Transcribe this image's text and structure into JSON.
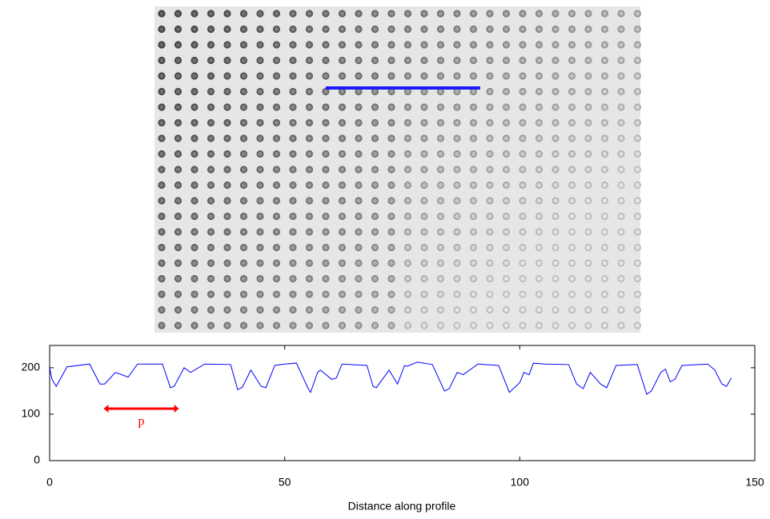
{
  "chart_data": {
    "type": "line",
    "xlabel": "Distance along profile",
    "xlim": [
      0,
      150
    ],
    "ylim": [
      0,
      248
    ],
    "xticks": [
      0,
      50,
      100,
      150
    ],
    "yticks": [
      0,
      100,
      200
    ],
    "x": [
      0,
      0.5,
      1.4,
      3.7,
      8.5,
      10.7,
      11.7,
      14,
      16.7,
      18.7,
      24,
      25.7,
      26.5,
      28.6,
      30,
      33,
      38.5,
      40,
      41,
      42.8,
      45,
      46,
      47.9,
      50,
      52.5,
      55,
      55.5,
      57,
      57.6,
      60,
      61,
      62.2,
      67.5,
      68.8,
      69.5,
      72.2,
      74,
      75.5,
      76,
      78.2,
      81.4,
      84,
      85,
      86.7,
      88,
      91.1,
      95.5,
      97.8,
      100,
      100.9,
      102,
      102.9,
      105.3,
      110.4,
      112.1,
      113.5,
      115,
      117.2,
      118.5,
      120.5,
      125,
      127,
      128,
      130,
      131,
      132,
      133,
      134.5,
      140,
      141.5,
      143,
      144,
      145
    ],
    "series": [
      {
        "color": "#0000ff",
        "values": [
          200,
          175,
          160,
          202,
          208,
          165,
          165,
          190,
          180,
          208,
          208,
          157,
          160,
          200,
          190,
          208,
          207,
          153,
          158,
          195,
          160,
          157,
          205,
          208,
          210,
          155,
          147,
          190,
          195,
          175,
          178,
          208,
          205,
          160,
          157,
          195,
          165,
          205,
          203,
          212,
          207,
          150,
          155,
          190,
          185,
          208,
          205,
          147,
          168,
          190,
          185,
          210,
          208,
          207,
          165,
          155,
          190,
          165,
          157,
          205,
          207,
          143,
          150,
          190,
          197,
          170,
          175,
          205,
          208,
          195,
          165,
          160,
          178
        ]
      }
    ],
    "annotation": {
      "text": "p",
      "color": "#ff0000",
      "x": [
        12,
        27
      ],
      "y": 112
    }
  }
}
